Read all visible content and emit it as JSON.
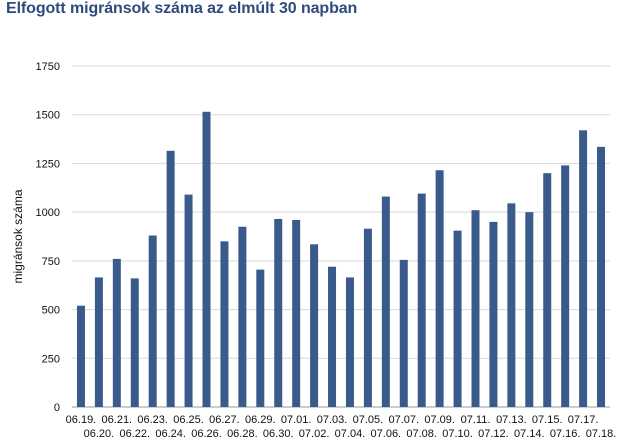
{
  "title": "Elfogott migránsok száma az elmúlt 30 napban",
  "colors": {
    "bar": "#3a5a8c",
    "grid": "#d9d9d9",
    "title": "#2f4b7c"
  },
  "chart_data": {
    "type": "bar",
    "title": "Elfogott migránsok száma az elmúlt 30 napban",
    "xlabel": "",
    "ylabel": "migránsok száma",
    "ylim": [
      0,
      1750
    ],
    "yticks": [
      0,
      250,
      500,
      750,
      1000,
      1250,
      1500,
      1750
    ],
    "grid": true,
    "legend": "none",
    "categories": [
      "06.19.",
      "06.20.",
      "06.21.",
      "06.22.",
      "06.23.",
      "06.24.",
      "06.25.",
      "06.26.",
      "06.27.",
      "06.28.",
      "06.29.",
      "06.30.",
      "07.01.",
      "07.02.",
      "07.03.",
      "07.04.",
      "07.05.",
      "07.06.",
      "07.07.",
      "07.08.",
      "07.09.",
      "07.10.",
      "07.11.",
      "07.12.",
      "07.13.",
      "07.14.",
      "07.15.",
      "07.16.",
      "07.17.",
      "07.18."
    ],
    "values": [
      520,
      665,
      760,
      660,
      880,
      1315,
      1090,
      1515,
      850,
      925,
      705,
      965,
      960,
      835,
      720,
      665,
      915,
      1080,
      755,
      1095,
      1215,
      905,
      1010,
      950,
      1045,
      1000,
      1200,
      1240,
      1420,
      1335
    ]
  }
}
